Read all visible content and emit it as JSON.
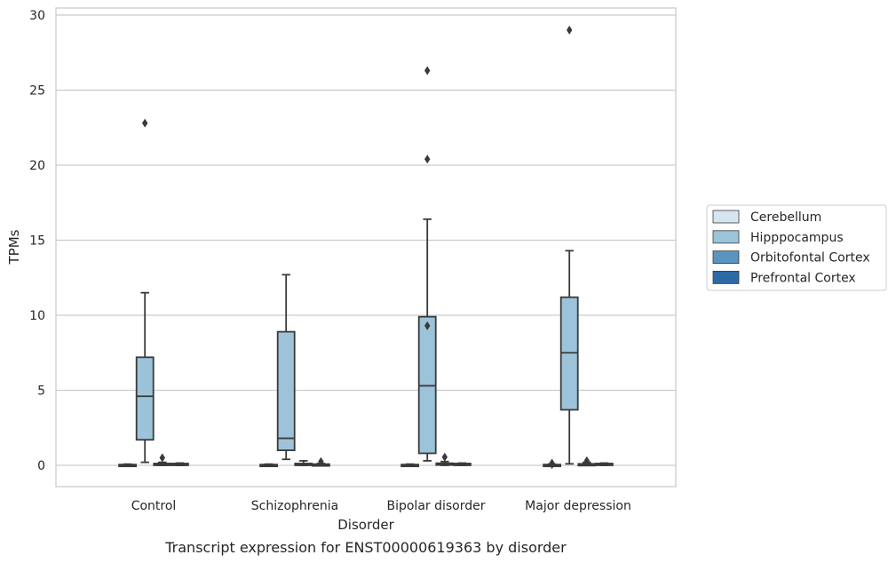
{
  "chart_data": {
    "type": "box",
    "caption": "Transcript expression for ENST00000619363 by disorder",
    "xlabel": "Disorder",
    "ylabel": "TPMs",
    "ylim": [
      -1.4,
      30.5
    ],
    "yticks": [
      0,
      5,
      10,
      15,
      20,
      25,
      30
    ],
    "grid": "horizontal",
    "legend_position": "right",
    "categories": [
      "Control",
      "Schizophrenia",
      "Bipolar disorder",
      "Major depression"
    ],
    "series": [
      {
        "name": "Cerebellum",
        "color": "#d6e5f2",
        "boxes": [
          {
            "whislo": 0,
            "q1": 0,
            "med": 0.02,
            "q3": 0.05,
            "whishi": 0.08,
            "fliers": []
          },
          {
            "whislo": 0,
            "q1": 0,
            "med": 0.02,
            "q3": 0.05,
            "whishi": 0.08,
            "fliers": []
          },
          {
            "whislo": 0,
            "q1": 0,
            "med": 0.02,
            "q3": 0.05,
            "whishi": 0.08,
            "fliers": []
          },
          {
            "whislo": 0,
            "q1": 0,
            "med": 0.02,
            "q3": 0.05,
            "whishi": 0.08,
            "fliers": [
              0.15,
              0.05
            ]
          }
        ]
      },
      {
        "name": "Hipppocampus",
        "color": "#9dc3db",
        "boxes": [
          {
            "whislo": 0.2,
            "q1": 1.7,
            "med": 4.6,
            "q3": 7.2,
            "whishi": 11.5,
            "fliers": [
              22.8
            ]
          },
          {
            "whislo": 0.4,
            "q1": 1.0,
            "med": 1.8,
            "q3": 8.9,
            "whishi": 12.7,
            "fliers": []
          },
          {
            "whislo": 0.3,
            "q1": 0.8,
            "med": 5.3,
            "q3": 9.9,
            "whishi": 16.4,
            "fliers": [
              9.3,
              20.4,
              26.3
            ]
          },
          {
            "whislo": 0.1,
            "q1": 3.7,
            "med": 7.5,
            "q3": 11.2,
            "whishi": 14.3,
            "fliers": [
              29.0
            ]
          }
        ]
      },
      {
        "name": "Orbitofontal Cortex",
        "color": "#5a95c2",
        "boxes": [
          {
            "whislo": 0,
            "q1": 0.02,
            "med": 0.06,
            "q3": 0.12,
            "whishi": 0.2,
            "fliers": [
              0.5
            ]
          },
          {
            "whislo": 0,
            "q1": 0.02,
            "med": 0.06,
            "q3": 0.12,
            "whishi": 0.3,
            "fliers": []
          },
          {
            "whislo": 0,
            "q1": 0.02,
            "med": 0.06,
            "q3": 0.14,
            "whishi": 0.25,
            "fliers": [
              0.55
            ]
          },
          {
            "whislo": 0,
            "q1": 0.02,
            "med": 0.05,
            "q3": 0.1,
            "whishi": 0.2,
            "fliers": [
              0.3
            ]
          }
        ]
      },
      {
        "name": "Prefrontal Cortex",
        "color": "#2d6aa5",
        "boxes": [
          {
            "whislo": 0,
            "q1": 0.02,
            "med": 0.06,
            "q3": 0.12,
            "whishi": 0.15,
            "fliers": []
          },
          {
            "whislo": 0,
            "q1": 0.01,
            "med": 0.04,
            "q3": 0.08,
            "whishi": 0.12,
            "fliers": [
              0.25
            ]
          },
          {
            "whislo": 0,
            "q1": 0.02,
            "med": 0.06,
            "q3": 0.12,
            "whishi": 0.15,
            "fliers": []
          },
          {
            "whislo": 0,
            "q1": 0.02,
            "med": 0.06,
            "q3": 0.12,
            "whishi": 0.15,
            "fliers": []
          }
        ]
      }
    ]
  }
}
